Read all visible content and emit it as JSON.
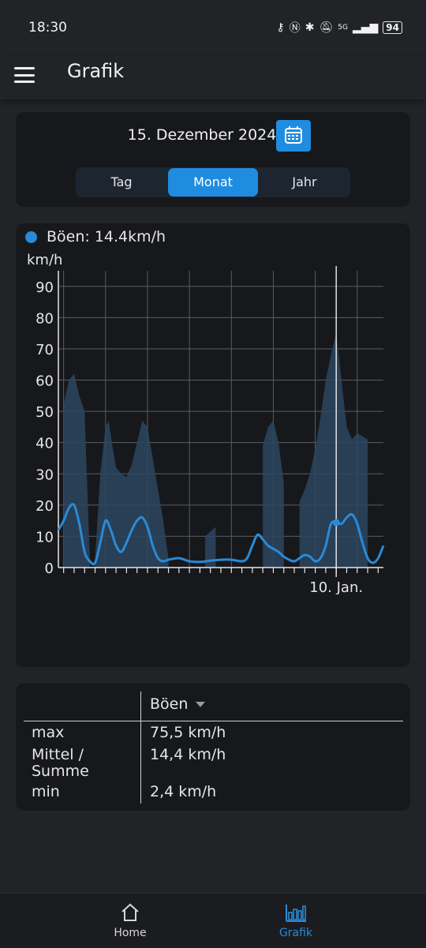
{
  "status_bar": {
    "time": "18:30",
    "battery": "94",
    "network": "5G"
  },
  "app_bar": {
    "title": "Grafik"
  },
  "date_picker": {
    "date": "15. Dezember 2024"
  },
  "period_tabs": [
    {
      "label": "Tag",
      "active": false
    },
    {
      "label": "Monat",
      "active": true
    },
    {
      "label": "Jahr",
      "active": false
    }
  ],
  "chart_data": {
    "type": "area",
    "legend": "Böen: 14.4km/h",
    "ylabel": "km/h",
    "ylim": [
      0,
      95
    ],
    "yticks": [
      0,
      10,
      20,
      30,
      40,
      50,
      60,
      70,
      80,
      90
    ],
    "xtick_label": "10. Jan.",
    "grid": true,
    "series": [
      {
        "name": "Böen",
        "kind": "area",
        "segments": [
          [
            [
              0,
              52
            ],
            [
              0.5,
              60
            ],
            [
              1,
              62
            ],
            [
              1.5,
              55
            ],
            [
              2,
              50
            ],
            [
              2.5,
              3
            ]
          ],
          [
            [
              3,
              3
            ],
            [
              3.5,
              30
            ],
            [
              4,
              45
            ],
            [
              4.3,
              47
            ],
            [
              4.6,
              40
            ],
            [
              5,
              32
            ],
            [
              5.5,
              30
            ],
            [
              6,
              29
            ],
            [
              6.5,
              33
            ],
            [
              7,
              40
            ],
            [
              7.5,
              47
            ],
            [
              8,
              45
            ],
            [
              8.5,
              35
            ],
            [
              9,
              25
            ],
            [
              9.5,
              15
            ],
            [
              10,
              3
            ]
          ],
          [
            [
              13.5,
              10
            ],
            [
              14.5,
              13
            ]
          ],
          [
            [
              19,
              39
            ],
            [
              19.5,
              45
            ],
            [
              20,
              47
            ],
            [
              20.5,
              40
            ],
            [
              21,
              27
            ]
          ],
          [
            [
              22.5,
              21
            ],
            [
              23,
              25
            ],
            [
              23.5,
              30
            ],
            [
              24,
              38
            ],
            [
              24.5,
              48
            ],
            [
              25,
              60
            ],
            [
              25.5,
              68
            ],
            [
              26,
              75
            ],
            [
              26.5,
              60
            ],
            [
              27,
              45
            ],
            [
              27.5,
              41
            ],
            [
              28,
              43
            ],
            [
              29,
              41
            ]
          ]
        ]
      },
      {
        "name": "Mittel",
        "kind": "line",
        "points": [
          [
            -0.5,
            12
          ],
          [
            0,
            15
          ],
          [
            0.5,
            19
          ],
          [
            1,
            20
          ],
          [
            1.5,
            14
          ],
          [
            2,
            5
          ],
          [
            2.5,
            2
          ],
          [
            3,
            1.5
          ],
          [
            3.5,
            8
          ],
          [
            4,
            15
          ],
          [
            4.5,
            12
          ],
          [
            5,
            7
          ],
          [
            5.5,
            5
          ],
          [
            6,
            8
          ],
          [
            6.5,
            12
          ],
          [
            7,
            15
          ],
          [
            7.5,
            16
          ],
          [
            8,
            13
          ],
          [
            8.5,
            7
          ],
          [
            9,
            3
          ],
          [
            9.5,
            2
          ],
          [
            10,
            2.5
          ],
          [
            11,
            3
          ],
          [
            12,
            2
          ],
          [
            13,
            1.8
          ],
          [
            14,
            2.2
          ],
          [
            15,
            2.5
          ],
          [
            16,
            2.5
          ],
          [
            17,
            2
          ],
          [
            17.5,
            3
          ],
          [
            18,
            7
          ],
          [
            18.5,
            10.5
          ],
          [
            19,
            9
          ],
          [
            19.5,
            7
          ],
          [
            20,
            6
          ],
          [
            20.5,
            5
          ],
          [
            21,
            3.5
          ],
          [
            21.5,
            2.5
          ],
          [
            22,
            2
          ],
          [
            22.5,
            3
          ],
          [
            23,
            4
          ],
          [
            23.5,
            3.5
          ],
          [
            24,
            2
          ],
          [
            24.5,
            3
          ],
          [
            25,
            7
          ],
          [
            25.5,
            14
          ],
          [
            26,
            14.4
          ],
          [
            26.5,
            14
          ],
          [
            27,
            16
          ],
          [
            27.5,
            17
          ],
          [
            28,
            14
          ],
          [
            28.5,
            8
          ],
          [
            29,
            3
          ],
          [
            29.5,
            1.5
          ],
          [
            30,
            3
          ],
          [
            30.5,
            7
          ]
        ]
      }
    ],
    "cursor": {
      "x": 26,
      "value": 14.4
    },
    "x_range": [
      -0.5,
      30.5
    ]
  },
  "table": {
    "column_header": "Böen",
    "rows": [
      {
        "label": "max",
        "value": "75,5 km/h"
      },
      {
        "label": "Mittel /\nSumme",
        "value": "14,4 km/h"
      },
      {
        "label": "min",
        "value": "2,4 km/h"
      }
    ]
  },
  "bottom_nav": [
    {
      "label": "Home",
      "icon": "home-icon",
      "active": false
    },
    {
      "label": "Grafik",
      "icon": "bar-chart-icon",
      "active": true
    }
  ],
  "colors": {
    "accent": "#1f8ce0",
    "series": "#2a8ad6",
    "area": "#2b4760"
  }
}
